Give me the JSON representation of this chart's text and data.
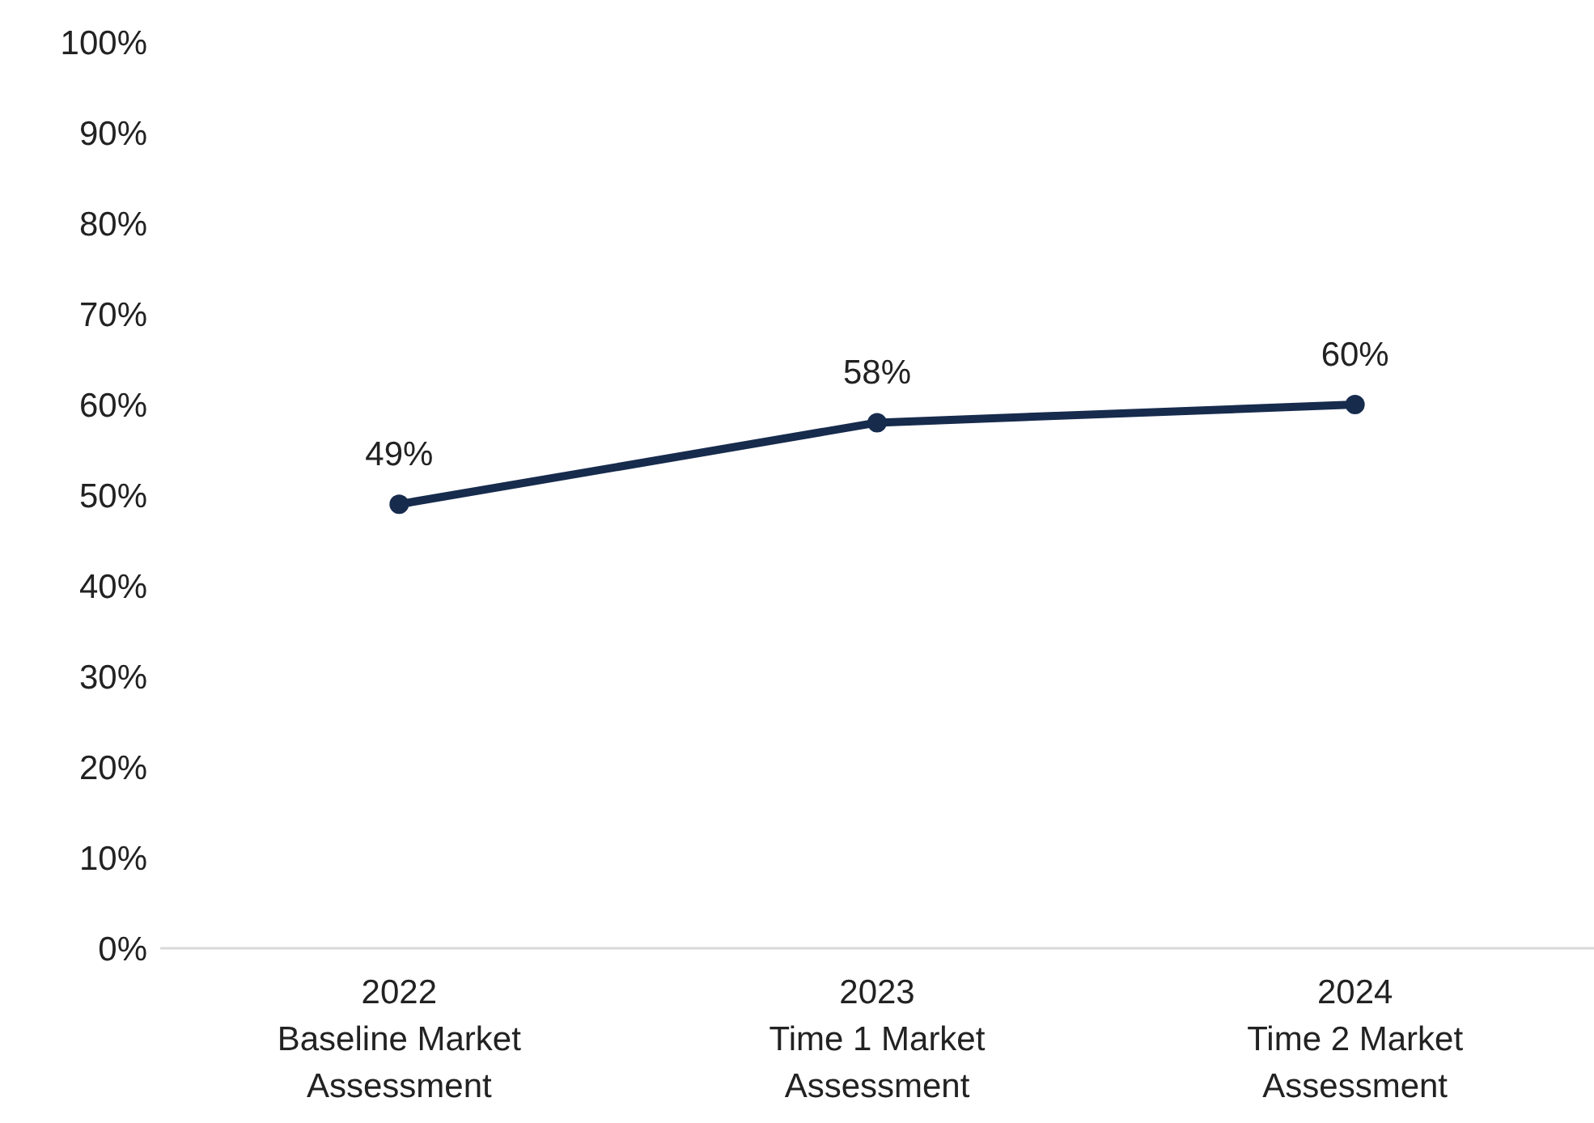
{
  "chart_data": {
    "type": "line",
    "categories": [
      "2022\nBaseline Market\nAssessment",
      "2023\nTime 1 Market\nAssessment",
      "2024\nTime 2 Market\nAssessment"
    ],
    "series": [
      {
        "color": "#172b4d",
        "values": [
          49,
          58,
          60
        ],
        "value_labels": [
          "49%",
          "58%",
          "60%"
        ]
      }
    ],
    "ylim": [
      0,
      100
    ],
    "yticks": [
      {
        "value": 0,
        "label": "0%"
      },
      {
        "value": 10,
        "label": "10%"
      },
      {
        "value": 20,
        "label": "20%"
      },
      {
        "value": 30,
        "label": "30%"
      },
      {
        "value": 40,
        "label": "40%"
      },
      {
        "value": 50,
        "label": "50%"
      },
      {
        "value": 60,
        "label": "60%"
      },
      {
        "value": 70,
        "label": "70%"
      },
      {
        "value": 80,
        "label": "80%"
      },
      {
        "value": 90,
        "label": "90%"
      },
      {
        "value": 100,
        "label": "100%"
      }
    ],
    "grid": false,
    "legend": false,
    "marker": "circle",
    "line_style": "solid"
  }
}
